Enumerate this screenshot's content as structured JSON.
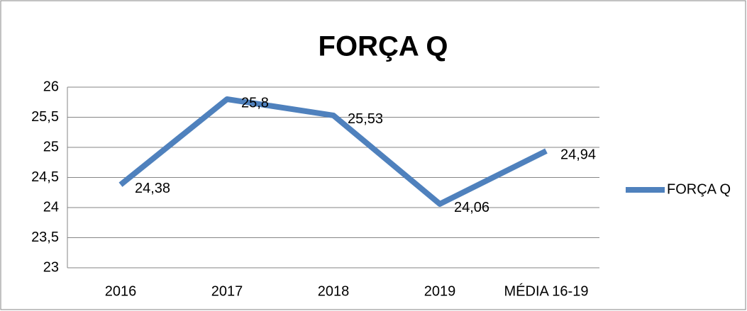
{
  "chart_data": {
    "type": "line",
    "title": "FORÇA Q",
    "categories": [
      "2016",
      "2017",
      "2018",
      "2019",
      "MÉDIA 16-19"
    ],
    "series": [
      {
        "name": "FORÇA Q",
        "color": "#4f81bd",
        "values": [
          24.38,
          25.8,
          25.53,
          24.06,
          24.94
        ],
        "value_labels": [
          "24,38",
          "25,8",
          "25,53",
          "24,06",
          "24,94"
        ]
      }
    ],
    "ylim": [
      23,
      26
    ],
    "yticks": [
      23,
      {
        "value": 23.5,
        "label": "23,5"
      },
      24,
      {
        "value": 24.5,
        "label": "24,5"
      },
      25,
      {
        "value": 25.5,
        "label": "25,5"
      },
      26
    ],
    "grid": true,
    "legend": "right"
  }
}
